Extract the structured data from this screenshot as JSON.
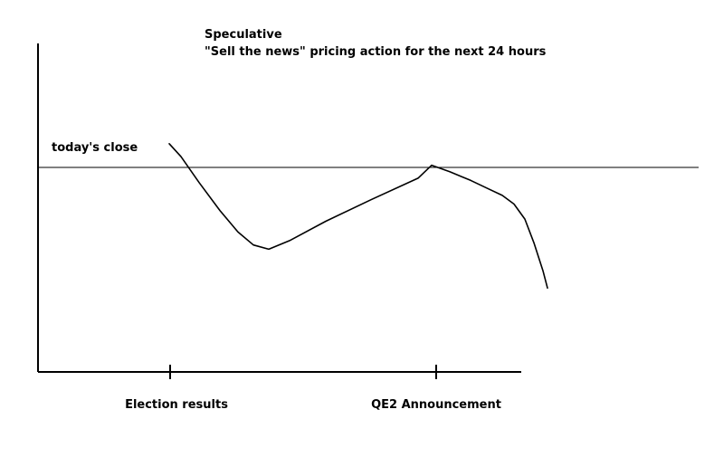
{
  "chart_data": {
    "type": "line",
    "title": "Speculative",
    "subtitle": "\"Sell the news\" pricing action for the next 24 hours",
    "xlabel": "",
    "ylabel": "",
    "x_tick_labels": [
      "Election results",
      "QE2 Announcement"
    ],
    "reference_line": {
      "label": "today's close",
      "value": 0
    },
    "xlim": [
      -1,
      1.4
    ],
    "ylim": [
      -1,
      0.11
    ],
    "grid": false,
    "legend": "none",
    "line_color": "#000000",
    "series": [
      {
        "values_note_free": true,
        "x": [
          0,
          0.05,
          0.12,
          0.2,
          0.28,
          0.36,
          0.45,
          0.55,
          0.7,
          0.85,
          1.0,
          1.05,
          1.1,
          1.15,
          1.2,
          1.25,
          1.3,
          1.35,
          1.4,
          1.45,
          1.49
        ],
        "y": [
          0.11,
          0.05,
          -0.07,
          -0.2,
          -0.3,
          -0.36,
          -0.38,
          -0.34,
          -0.25,
          -0.15,
          -0.05,
          0.01,
          -0.02,
          -0.06,
          -0.1,
          -0.13,
          -0.17,
          -0.24,
          -0.35,
          -0.48,
          -0.56
        ]
      }
    ]
  }
}
